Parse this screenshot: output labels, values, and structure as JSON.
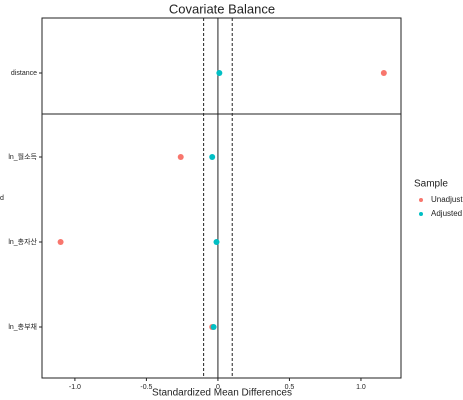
{
  "chart_data": {
    "type": "scatter",
    "title": "Covariate Balance",
    "x_label": "Standardized Mean Differences",
    "y_label": "d",
    "categories": [
      "distance",
      "ln_월소득",
      "ln_총자산",
      "ln_총부채"
    ],
    "series": [
      {
        "name": "Unadjusted",
        "color": "#F8766D",
        "values": [
          1.16,
          -0.26,
          -1.1,
          -0.04
        ]
      },
      {
        "name": "Adjusted",
        "color": "#00BFC4",
        "values": [
          0.01,
          -0.04,
          -0.01,
          -0.03
        ]
      }
    ],
    "xlim": [
      -1.23,
      1.28
    ],
    "xticks": [
      {
        "value": -1,
        "label": "-1.0"
      },
      -0.5,
      0,
      0.5,
      {
        "value": 1,
        "label": "1.0"
      }
    ],
    "thresholds": [
      -0.1,
      0.1
    ],
    "legend_title": "Sample",
    "legend_position": "right"
  }
}
